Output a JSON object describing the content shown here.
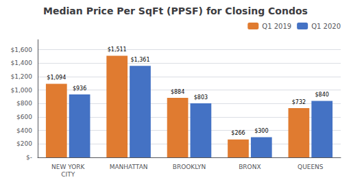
{
  "chart_data": {
    "type": "bar",
    "title": "Median Price Per SqFt (PPSF) for Closing Condos",
    "categories": [
      "NEW YORK\nCITY",
      "MANHATTAN",
      "BROOKLYN",
      "BRONX",
      "QUEENS"
    ],
    "series": [
      {
        "name": "Q1 2019",
        "color": "#E07B30",
        "values": [
          1094,
          1511,
          884,
          266,
          732
        ],
        "value_labels": [
          "$1,094",
          "$1,511",
          "$884",
          "$266",
          "$732"
        ]
      },
      {
        "name": "Q1 2020",
        "color": "#4472C4",
        "values": [
          936,
          1361,
          803,
          300,
          840
        ],
        "value_labels": [
          "$936",
          "$1,361",
          "$803",
          "$300",
          "$840"
        ]
      }
    ],
    "ylim": [
      0,
      1750
    ],
    "yticks": [
      {
        "value": 0,
        "label": "$-"
      },
      {
        "value": 200,
        "label": "$200"
      },
      {
        "value": 400,
        "label": "$400"
      },
      {
        "value": 600,
        "label": "$600"
      },
      {
        "value": 800,
        "label": "$800"
      },
      {
        "value": 1000,
        "label": "$1,000"
      },
      {
        "value": 1200,
        "label": "$1,200"
      },
      {
        "value": 1400,
        "label": "$1,400"
      },
      {
        "value": 1600,
        "label": "$1,600"
      }
    ],
    "grid": true,
    "legend": "upper right",
    "data_labels": true
  }
}
